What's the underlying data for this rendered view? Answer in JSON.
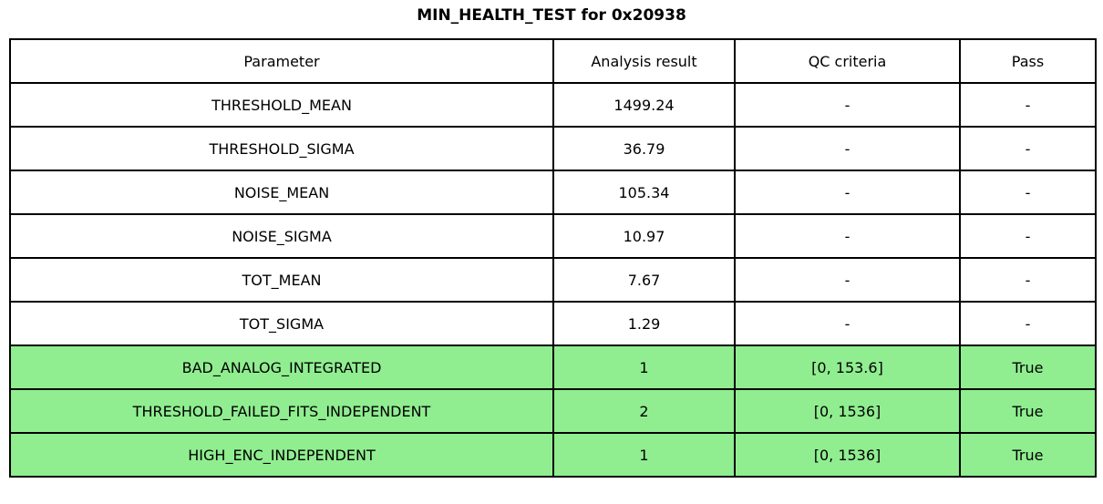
{
  "title": "MIN_HEALTH_TEST for 0x20938",
  "chart_data": {
    "type": "table",
    "title": "MIN_HEALTH_TEST for 0x20938",
    "columns": [
      "Parameter",
      "Analysis result",
      "QC criteria",
      "Pass"
    ],
    "rows": [
      [
        "THRESHOLD_MEAN",
        "1499.24",
        "-",
        "-"
      ],
      [
        "THRESHOLD_SIGMA",
        "36.79",
        "-",
        "-"
      ],
      [
        "NOISE_MEAN",
        "105.34",
        "-",
        "-"
      ],
      [
        "NOISE_SIGMA",
        "10.97",
        "-",
        "-"
      ],
      [
        "TOT_MEAN",
        "7.67",
        "-",
        "-"
      ],
      [
        "TOT_SIGMA",
        "1.29",
        "-",
        "-"
      ],
      [
        "BAD_ANALOG_INTEGRATED",
        "1",
        "[0, 153.6]",
        "True"
      ],
      [
        "THRESHOLD_FAILED_FITS_INDEPENDENT",
        "2",
        "[0, 1536]",
        "True"
      ],
      [
        "HIGH_ENC_INDEPENDENT",
        "1",
        "[0, 1536]",
        "True"
      ]
    ],
    "highlighted_rows": [
      6,
      7,
      8
    ],
    "highlight_color": "#90ee90",
    "border_color": "#000000",
    "legend_position": "none",
    "grid": true
  }
}
